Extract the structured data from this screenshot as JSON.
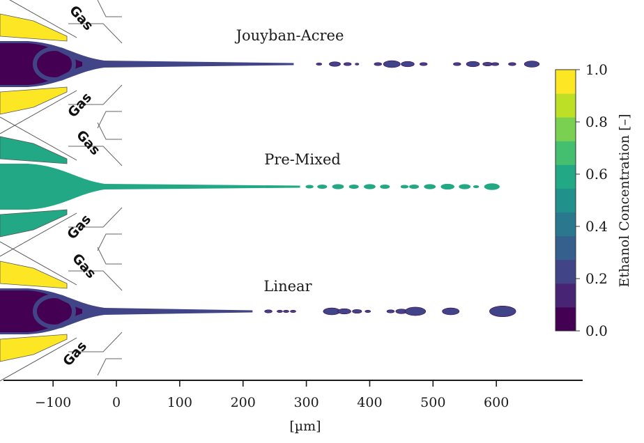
{
  "chart_data": {
    "type": "contour",
    "xlabel": "[µm]",
    "x_ticks": [
      -100,
      0,
      100,
      200,
      300,
      400,
      500,
      600
    ],
    "xlim": [
      -180,
      730
    ],
    "gas_label": "Gas",
    "colorbar": {
      "label": "Ethanol Concentration [–]",
      "range": [
        0.0,
        1.0
      ],
      "ticks": [
        "0.0",
        "0.2",
        "0.4",
        "0.6",
        "0.8",
        "1.0"
      ],
      "levels": [
        "#440154",
        "#482475",
        "#414487",
        "#355f8d",
        "#2a788e",
        "#21918c",
        "#22a884",
        "#44bf70",
        "#7ad151",
        "#bddf26",
        "#fde725"
      ]
    },
    "panels": [
      {
        "name": "Jouyban-Acree",
        "jet_color": "#414487",
        "core_color": "#440154",
        "jet_end_um": 280,
        "droplets": [
          {
            "x": 320,
            "size": 3
          },
          {
            "x": 345,
            "size": 6
          },
          {
            "x": 365,
            "size": 4
          },
          {
            "x": 380,
            "size": 2
          },
          {
            "x": 413,
            "size": 4
          },
          {
            "x": 435,
            "size": 9
          },
          {
            "x": 460,
            "size": 7
          },
          {
            "x": 485,
            "size": 4
          },
          {
            "x": 538,
            "size": 4
          },
          {
            "x": 563,
            "size": 7
          },
          {
            "x": 586,
            "size": 5
          },
          {
            "x": 598,
            "size": 4
          },
          {
            "x": 625,
            "size": 4
          },
          {
            "x": 656,
            "size": 8
          }
        ]
      },
      {
        "name": "Pre-Mixed",
        "jet_color": "#22a884",
        "core_color": "#22a884",
        "jet_end_um": 290,
        "droplets": [
          {
            "x": 305,
            "size": 4
          },
          {
            "x": 325,
            "size": 5
          },
          {
            "x": 350,
            "size": 6
          },
          {
            "x": 375,
            "size": 5
          },
          {
            "x": 400,
            "size": 6
          },
          {
            "x": 424,
            "size": 5
          },
          {
            "x": 455,
            "size": 4
          },
          {
            "x": 470,
            "size": 5
          },
          {
            "x": 495,
            "size": 6
          },
          {
            "x": 523,
            "size": 7
          },
          {
            "x": 550,
            "size": 6
          },
          {
            "x": 568,
            "size": 3
          },
          {
            "x": 593,
            "size": 8
          }
        ]
      },
      {
        "name": "Linear",
        "jet_color": "#414487",
        "core_color": "#440154",
        "jet_end_um": 215,
        "droplets": [
          {
            "x": 240,
            "size": 4
          },
          {
            "x": 258,
            "size": 3
          },
          {
            "x": 268,
            "size": 3
          },
          {
            "x": 279,
            "size": 3
          },
          {
            "x": 340,
            "size": 9
          },
          {
            "x": 360,
            "size": 7
          },
          {
            "x": 380,
            "size": 5
          },
          {
            "x": 397,
            "size": 3
          },
          {
            "x": 433,
            "size": 4
          },
          {
            "x": 450,
            "size": 6
          },
          {
            "x": 472,
            "size": 11
          },
          {
            "x": 528,
            "size": 9
          },
          {
            "x": 610,
            "size": 14
          }
        ]
      }
    ]
  }
}
